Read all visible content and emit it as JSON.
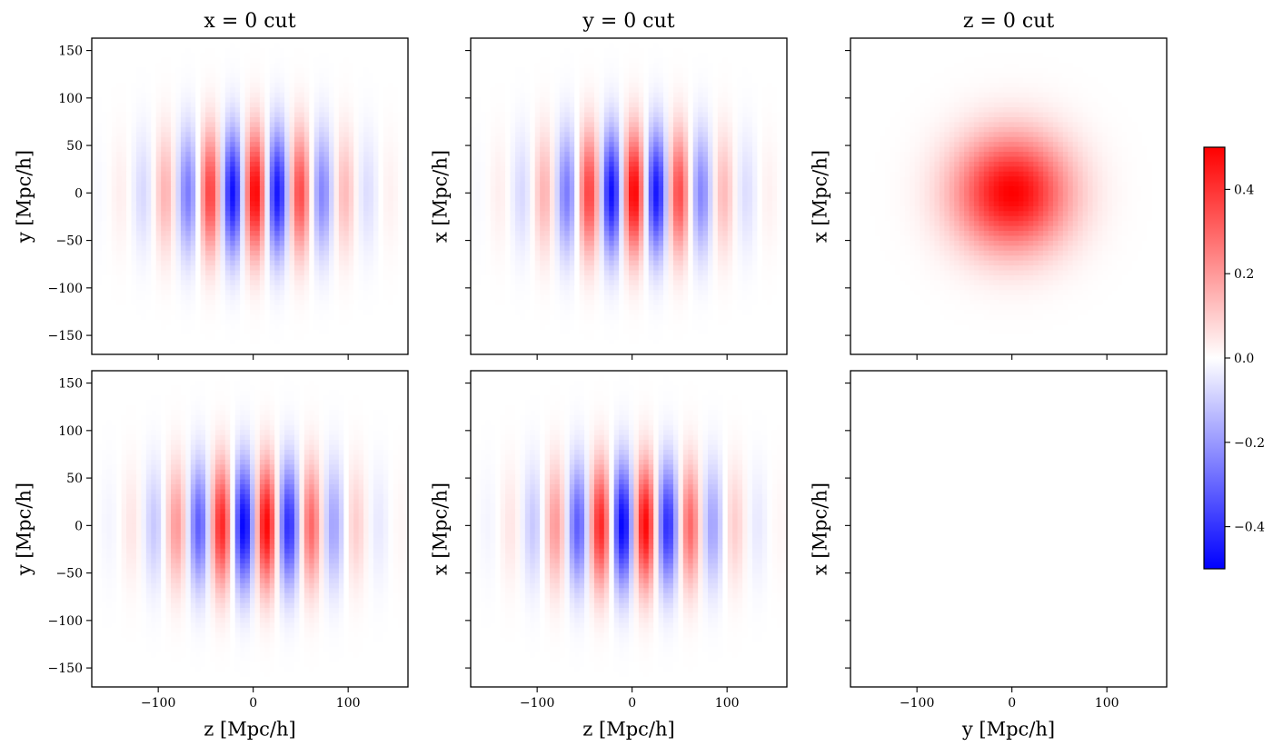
{
  "chart_data": {
    "type": "heatmap",
    "colormap": "bwr",
    "panels": [
      {
        "id": "r0c0",
        "title": "x = 0 cut",
        "xlabel": "",
        "ylabel": "y [Mpc/h]",
        "profile": "even",
        "amp": 0.5
      },
      {
        "id": "r0c1",
        "title": "y = 0 cut",
        "xlabel": "",
        "ylabel": "x [Mpc/h]",
        "profile": "even",
        "amp": 0.5
      },
      {
        "id": "r0c2",
        "title": "z = 0 cut",
        "xlabel": "",
        "ylabel": "x [Mpc/h]",
        "profile": "radial",
        "amp": 0.5
      },
      {
        "id": "r1c0",
        "title": "",
        "xlabel": "z [Mpc/h]",
        "ylabel": "y [Mpc/h]",
        "profile": "odd",
        "amp": 0.5
      },
      {
        "id": "r1c1",
        "title": "",
        "xlabel": "z [Mpc/h]",
        "ylabel": "x [Mpc/h]",
        "profile": "odd",
        "amp": 0.5
      },
      {
        "id": "r1c2",
        "title": "",
        "xlabel": "y [Mpc/h]",
        "ylabel": "x [Mpc/h]",
        "profile": "zero",
        "amp": 0.0
      }
    ],
    "xlim": [
      -170,
      163
    ],
    "ylim": [
      -170,
      163
    ],
    "x_ticks": [
      -100,
      0,
      100
    ],
    "x_tick_labels": [
      "−100",
      "0",
      "100"
    ],
    "y_ticks": [
      150,
      100,
      50,
      0,
      -50,
      -100,
      -150
    ],
    "y_tick_labels": [
      "150",
      "100",
      "50",
      "0",
      "−50",
      "−100",
      "−150"
    ],
    "colorbar": {
      "vmin": -0.5,
      "vmax": 0.5,
      "ticks": [
        0.4,
        0.2,
        0.0,
        -0.2,
        -0.4
      ],
      "tick_labels": [
        "0.4",
        "0.2",
        "0.0",
        "−0.2",
        "−0.4"
      ],
      "color_min": "#0000ff",
      "color_mid": "#ffffff",
      "color_max": "#ff0000"
    }
  }
}
